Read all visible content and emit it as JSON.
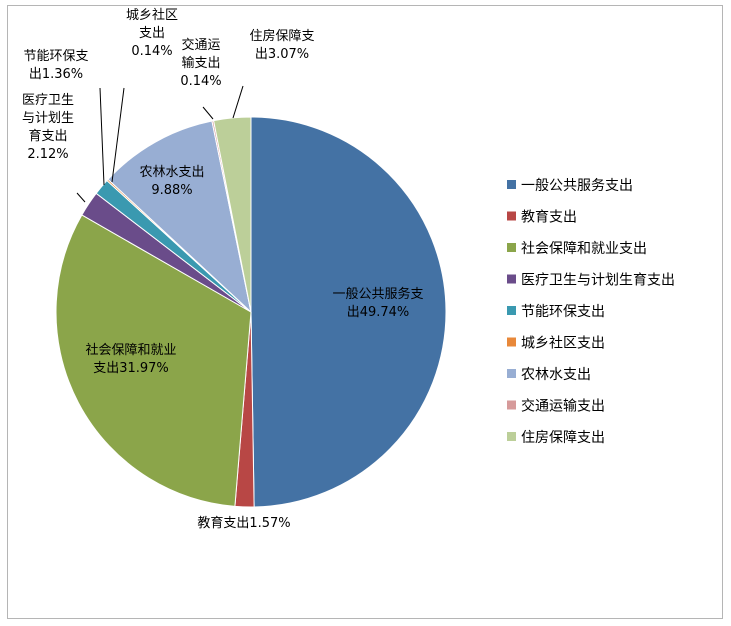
{
  "chart_data": {
    "type": "pie",
    "title": "",
    "legend_position": "right",
    "slices": [
      {
        "name": "一般公共服务支出",
        "value": 49.74,
        "color": "#4472a4",
        "label_lines": [
          "一般公共服务支",
          "出49.74%"
        ]
      },
      {
        "name": "教育支出",
        "value": 1.57,
        "color": "#b84745",
        "label_lines": [
          "教育支出1.57%"
        ]
      },
      {
        "name": "社会保障和就业支出",
        "value": 31.97,
        "color": "#8ba54a",
        "label_lines": [
          "社会保障和就业",
          "支出31.97%"
        ]
      },
      {
        "name": "医疗卫生与计划生育支出",
        "value": 2.12,
        "color": "#6a4c8a",
        "label_lines": [
          "医疗卫生",
          "与计划生",
          "育支出",
          "2.12%"
        ]
      },
      {
        "name": "节能环保支出",
        "value": 1.36,
        "color": "#3a99b0",
        "label_lines": [
          "节能环保支",
          "出1.36%"
        ]
      },
      {
        "name": "城乡社区支出",
        "value": 0.14,
        "color": "#e8883a",
        "label_lines": [
          "城乡社区",
          "支出",
          "0.14%"
        ]
      },
      {
        "name": "农林水支出",
        "value": 9.88,
        "color": "#98aed3",
        "label_lines": [
          "农林水支出",
          "9.88%"
        ]
      },
      {
        "name": "交通运输支出",
        "value": 0.14,
        "color": "#d69a9a",
        "label_lines": [
          "交通运",
          "输支出",
          "0.14%"
        ]
      },
      {
        "name": "住房保障支出",
        "value": 3.07,
        "color": "#bccf99",
        "label_lines": [
          "住房保障支",
          "出3.07%"
        ]
      }
    ]
  }
}
